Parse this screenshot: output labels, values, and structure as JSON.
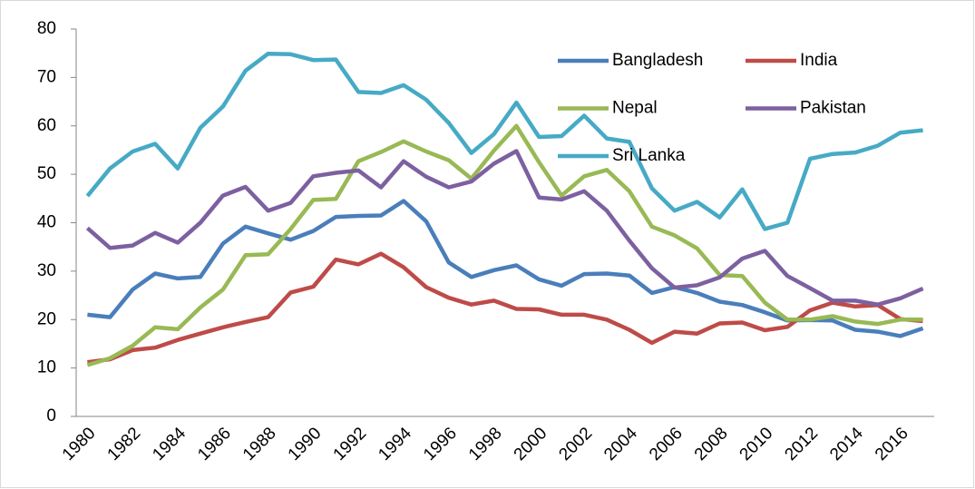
{
  "chart_data": {
    "type": "line",
    "categories": [
      "1980",
      null,
      "1982",
      null,
      "1984",
      null,
      "1986",
      null,
      "1988",
      null,
      "1990",
      null,
      "1992",
      null,
      "1994",
      null,
      "1996",
      null,
      "1998",
      null,
      "2000",
      null,
      "2002",
      null,
      "2004",
      null,
      "2006",
      null,
      "2008",
      null,
      "2010",
      null,
      "2012",
      null,
      "2014",
      null,
      "2016",
      null
    ],
    "series": [
      {
        "name": "Bangladesh",
        "color": "#4a7ebb",
        "values": [
          21,
          20.5,
          26.2,
          29.5,
          28.5,
          28.8,
          35.7,
          39.2,
          37.8,
          36.5,
          38.3,
          41.2,
          41.4,
          41.5,
          44.5,
          40.3,
          31.8,
          28.8,
          30.2,
          31.2,
          28.3,
          27,
          29.4,
          29.5,
          29.1,
          25.5,
          26.7,
          25.5,
          23.7,
          23,
          21.5,
          19.8,
          19.9,
          19.8,
          17.9,
          17.5,
          16.6,
          18.2
        ]
      },
      {
        "name": "India",
        "color": "#be4b48",
        "values": [
          11.2,
          11.8,
          13.7,
          14.2,
          15.8,
          17.1,
          18.4,
          19.5,
          20.5,
          25.6,
          26.8,
          32.4,
          31.4,
          33.6,
          30.8,
          26.7,
          24.5,
          23.1,
          23.9,
          22.2,
          22.1,
          21,
          21,
          20,
          17.9,
          15.2,
          17.5,
          17.1,
          19.2,
          19.4,
          17.8,
          18.5,
          21.9,
          23.5,
          22.7,
          23,
          20.1,
          19.7
        ]
      },
      {
        "name": "Nepal",
        "color": "#98b954",
        "values": [
          10.6,
          12,
          14.6,
          18.4,
          18,
          22.5,
          26.2,
          33.3,
          33.5,
          38.7,
          44.7,
          44.9,
          52.7,
          54.6,
          56.8,
          54.7,
          52.9,
          49.1,
          54.9,
          60,
          52.5,
          45.6,
          49.6,
          50.9,
          46.5,
          39.2,
          37.4,
          34.7,
          29.2,
          29,
          23.5,
          20,
          20,
          20.7,
          19.6,
          19.1,
          20,
          20
        ]
      },
      {
        "name": "Pakistan",
        "color": "#7d60a0",
        "values": [
          38.9,
          34.8,
          35.3,
          37.9,
          35.9,
          40,
          45.6,
          47.4,
          42.5,
          44.1,
          49.6,
          50.3,
          50.8,
          47.3,
          52.7,
          49.5,
          47.3,
          48.5,
          52.2,
          54.8,
          45.2,
          44.8,
          46.5,
          42.5,
          36.3,
          30.6,
          26.6,
          27.1,
          28.7,
          32.6,
          34.2,
          29,
          26.5,
          23.9,
          23.9,
          23.1,
          24.4,
          26.4
        ]
      },
      {
        "name": "Sri Lanka",
        "color": "#46aac5",
        "values": [
          45.5,
          51.2,
          54.7,
          56.3,
          51.2,
          59.6,
          64,
          71.4,
          74.9,
          74.8,
          73.6,
          73.7,
          67,
          66.8,
          68.4,
          65.4,
          60.6,
          54.4,
          58.3,
          64.8,
          57.7,
          57.9,
          62.1,
          57.4,
          56.7,
          47.1,
          42.5,
          44.3,
          41.1,
          46.9,
          38.7,
          40,
          53.2,
          54.2,
          54.5,
          55.9,
          58.6,
          59.1
        ]
      }
    ],
    "ylim": [
      0,
      80
    ],
    "yticks": [
      0,
      10,
      20,
      30,
      40,
      50,
      60,
      70,
      80
    ],
    "grid": false,
    "legend": "top-right"
  }
}
